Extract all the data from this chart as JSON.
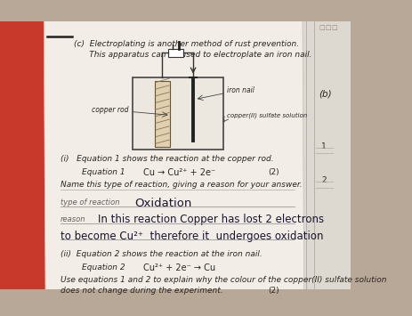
{
  "bg_color_left": "#c8392b",
  "bg_color_right": "#b8a898",
  "paper_color": "#f2ede6",
  "sidebar_color": "#ddd8d0",
  "title1": "(c)  Electroplating is another method of rust prevention.",
  "title2": "      This apparatus can be used to electroplate an iron nail.",
  "eq1_section": "(i)   Equation 1 shows the reaction at the copper rod.",
  "eq1_label": "Equation 1",
  "eq1_text": "Cu → Cu²⁺ + 2e⁻",
  "eq1_marks": "(2)",
  "eq1_instruction": "Name this type of reaction, giving a reason for your answer.",
  "type_label": "type of reaction",
  "type_answer": "Oxidation",
  "reason_label": "reason",
  "reason_line1": "In this reaction Copper has lost 2 electrons",
  "reason_line2": "to become Cu²⁺  therefore it  undergoes oxidation",
  "eq2_section": "(ii)  Equation 2 shows the reaction at the iron nail.",
  "eq2_label": "Equation 2",
  "eq2_text": "Cu²⁺ + 2e⁻ → Cu",
  "eq2_instruction1": "Use equations 1 and 2 to explain why the colour of the copper(II) sulfate solution",
  "eq2_instruction2": "does not change during the experiment.",
  "eq2_marks": "(2)",
  "label_copper": "copper rod",
  "label_nail": "iron nail",
  "label_solution": "copper(II) sulfate solution",
  "sidebar_b": "(b)",
  "sidebar_1": "1",
  "sidebar_2": "2",
  "print_color": "#2a2520",
  "hand_color": "#1a1530",
  "gray_color": "#666060"
}
